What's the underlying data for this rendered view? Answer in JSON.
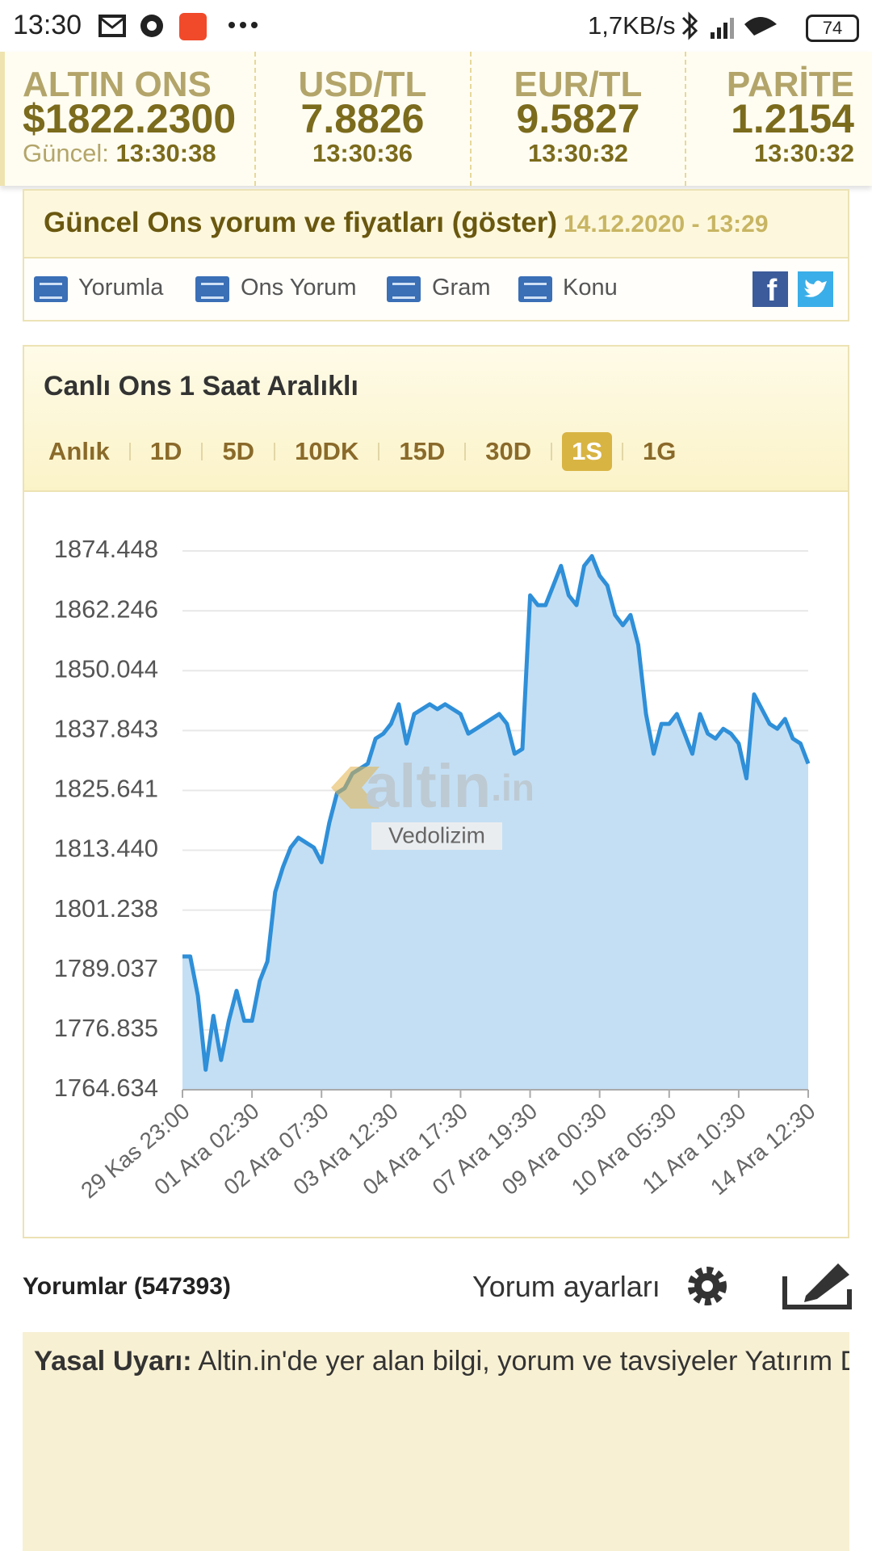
{
  "status_bar": {
    "time": "13:30",
    "net_speed": "1,7KB/s",
    "battery": "74"
  },
  "ticker": [
    {
      "label": "ALTIN ONS",
      "value": "$1822.2300",
      "time_label": "Güncel:",
      "time": "13:30:38"
    },
    {
      "label": "USD/TL",
      "value": "7.8826",
      "time": "13:30:36"
    },
    {
      "label": "EUR/TL",
      "value": "9.5827",
      "time": "13:30:32"
    },
    {
      "label": "PARİTE",
      "value": "1.2154",
      "time": "13:30:32"
    }
  ],
  "news_bar": {
    "title": "Güncel Ons yorum ve fiyatları (göster)",
    "date": "14.12.2020 - 13:29"
  },
  "links": [
    "Yorumla",
    "Ons Yorum",
    "Gram",
    "Konu"
  ],
  "chart_panel": {
    "title": "Canlı Ons 1 Saat Aralıklı",
    "tabs": [
      "Anlık",
      "1D",
      "5D",
      "10DK",
      "15D",
      "30D",
      "1S",
      "1G"
    ],
    "active_tab": 6
  },
  "chart_data": {
    "type": "area",
    "watermark": {
      "brand": "altin",
      "suffix": ".in"
    },
    "watermark_caption": "Vedolizim",
    "categories": [
      "29 Kas 23:00",
      null,
      null,
      null,
      null,
      null,
      null,
      null,
      null,
      "01 Ara 02:30",
      null,
      null,
      null,
      null,
      null,
      null,
      null,
      null,
      "02 Ara 07:30",
      null,
      null,
      null,
      null,
      null,
      null,
      null,
      null,
      "03 Ara 12:30",
      null,
      null,
      null,
      null,
      null,
      null,
      null,
      null,
      "04 Ara 17:30",
      null,
      null,
      null,
      null,
      null,
      null,
      null,
      null,
      "07 Ara 19:30",
      null,
      null,
      null,
      null,
      null,
      null,
      null,
      null,
      "09 Ara 00:30",
      null,
      null,
      null,
      null,
      null,
      null,
      null,
      null,
      "10 Ara 05:30",
      null,
      null,
      null,
      null,
      null,
      null,
      null,
      null,
      "11 Ara 10:30",
      null,
      null,
      null,
      null,
      null,
      null,
      null,
      null,
      "14 Ara 12:30"
    ],
    "values": [
      1791.8,
      1791.8,
      1783.8,
      1768.7,
      1779.7,
      1770.7,
      1778.7,
      1784.8,
      1778.7,
      1778.7,
      1786.8,
      1790.8,
      1804.9,
      1810.0,
      1814.0,
      1816.0,
      1815.0,
      1814.0,
      1811.0,
      1819.0,
      1825.1,
      1826.1,
      1829.1,
      1830.1,
      1831.1,
      1836.2,
      1837.2,
      1839.2,
      1843.2,
      1835.2,
      1841.2,
      1842.2,
      1843.2,
      1842.2,
      1843.2,
      1842.2,
      1841.2,
      1837.2,
      1838.2,
      1839.2,
      1840.2,
      1841.2,
      1839.2,
      1833.1,
      1834.1,
      1865.4,
      1863.4,
      1863.4,
      1867.4,
      1871.4,
      1865.4,
      1863.4,
      1871.4,
      1873.4,
      1869.4,
      1867.4,
      1861.4,
      1859.3,
      1861.4,
      1855.3,
      1841.2,
      1833.1,
      1839.2,
      1839.2,
      1841.2,
      1837.2,
      1833.1,
      1841.2,
      1837.2,
      1836.2,
      1838.2,
      1837.2,
      1835.2,
      1828.1,
      1845.2,
      1842.2,
      1839.2,
      1838.2,
      1840.2,
      1836.2,
      1835.2,
      1831.1
    ],
    "color": "#2f8fd8",
    "fill_color": "#c4dff4",
    "ylim": [
      1764.634,
      1874.448
    ],
    "yticks": [
      1764.634,
      1776.835,
      1789.037,
      1801.238,
      {
        "value": 1813.44,
        "label": "1813.440"
      },
      1825.641,
      1837.843,
      1850.044,
      1862.246,
      1874.448
    ],
    "grid": true
  },
  "comments": {
    "title": "Yorumlar (547393)",
    "settings": "Yorum ayarları"
  },
  "legal": {
    "label": "Yasal Uyarı:",
    "text": "Altin.in'de yer alan bilgi, yorum ve tavsiyeler Yatırım Danışmanlığı kapsamında değildir. Yorumlar kullanıcıların kişisel görüşlerinden ibarettir. Bu görüş ve bilgilere dayanılarak alınacak yatırım kararları beklentilerinize uygun sonuçlar doğurmayabilir. Dolayısıyla kullanıcıların yorumlarına göre yatırım kararı"
  }
}
